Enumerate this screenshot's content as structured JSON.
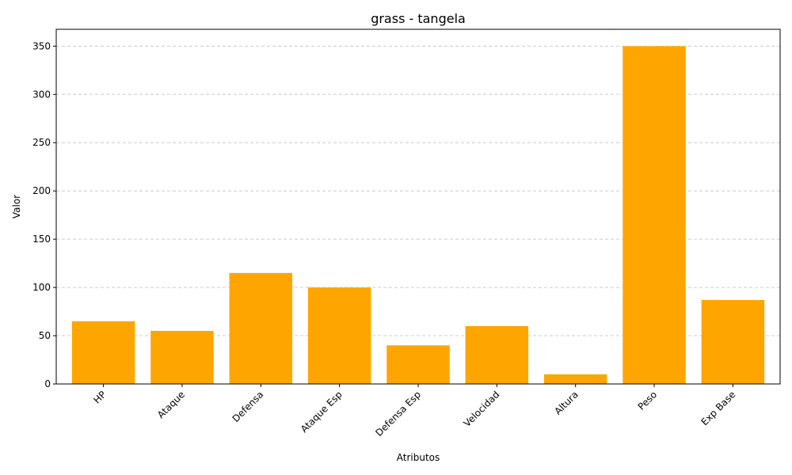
{
  "chart_data": {
    "type": "bar",
    "title": "grass - tangela",
    "xlabel": "Atributos",
    "ylabel": "Valor",
    "categories": [
      "HP",
      "Ataque",
      "Defensa",
      "Ataque Esp",
      "Defensa Esp",
      "Velocidad",
      "Altura",
      "Peso",
      "Exp Base"
    ],
    "values": [
      65,
      55,
      115,
      100,
      40,
      60,
      10,
      350,
      87
    ],
    "ylim": [
      0,
      367.5
    ],
    "yticks": [
      0,
      50,
      100,
      150,
      200,
      250,
      300,
      350
    ],
    "grid": "y-dashed",
    "bar_color": "#ffa500",
    "xtick_rotation": 45
  }
}
